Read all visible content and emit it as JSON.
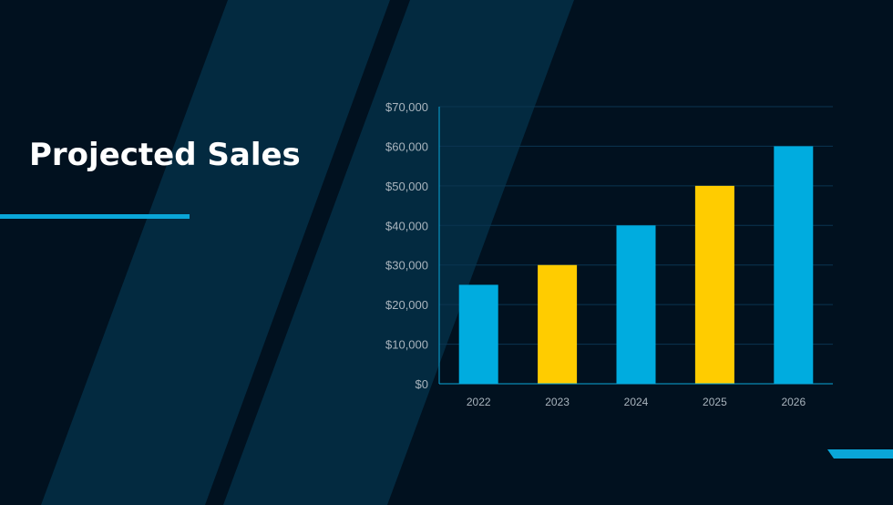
{
  "slide": {
    "title": "Projected Sales",
    "colors": {
      "background": "#01111f",
      "stripe": "#032a40",
      "accent_bar": "#0aa6d8"
    }
  },
  "chart_data": {
    "type": "bar",
    "categories": [
      "2022",
      "2023",
      "2024",
      "2025",
      "2026"
    ],
    "values": [
      25000,
      30000,
      40000,
      50000,
      60000
    ],
    "bar_colors": [
      "#00acdf",
      "#ffcc00",
      "#00acdf",
      "#ffcc00",
      "#00acdf"
    ],
    "y_ticks": [
      "$0",
      "$10,000",
      "$20,000",
      "$30,000",
      "$40,000",
      "$50,000",
      "$60,000",
      "$70,000"
    ],
    "ylim": [
      0,
      70000
    ],
    "grid": true,
    "title": "",
    "xlabel": "",
    "ylabel": ""
  }
}
